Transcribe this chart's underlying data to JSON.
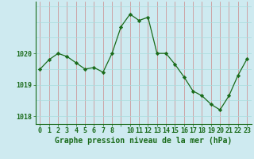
{
  "x": [
    0,
    1,
    2,
    3,
    4,
    5,
    6,
    7,
    8,
    9,
    10,
    11,
    12,
    13,
    14,
    15,
    16,
    17,
    18,
    19,
    20,
    21,
    22,
    23
  ],
  "y": [
    1019.5,
    1019.8,
    1020.0,
    1019.9,
    1019.7,
    1019.5,
    1019.55,
    1019.4,
    1020.0,
    1020.85,
    1021.25,
    1021.05,
    1021.15,
    1020.0,
    1020.0,
    1019.65,
    1019.25,
    1018.8,
    1018.65,
    1018.38,
    1018.2,
    1018.65,
    1019.3,
    1019.82
  ],
  "line_color": "#1a6b1a",
  "marker_color": "#1a6b1a",
  "bg_color": "#ceeaf0",
  "grid_color_v": "#cc8888",
  "grid_color_h": "#aadddd",
  "axis_color": "#1a6b1a",
  "xlabel": "Graphe pression niveau de la mer (hPa)",
  "xlabel_fontsize": 7,
  "tick_fontsize": 6,
  "ytick_labels": [
    "1018",
    "1019",
    "1020"
  ],
  "ytick_values": [
    1018,
    1019,
    1020
  ],
  "ylim": [
    1017.75,
    1021.65
  ],
  "xlim": [
    -0.5,
    23.5
  ]
}
